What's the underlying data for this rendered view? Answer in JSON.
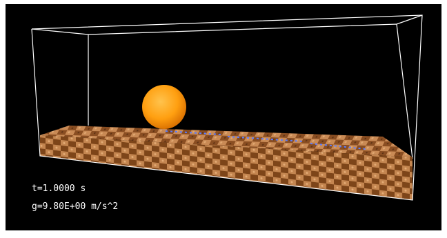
{
  "overlay": {
    "time": "t=1.0000 s",
    "gravity": "g=9.80E+00 m/s^2"
  }
}
